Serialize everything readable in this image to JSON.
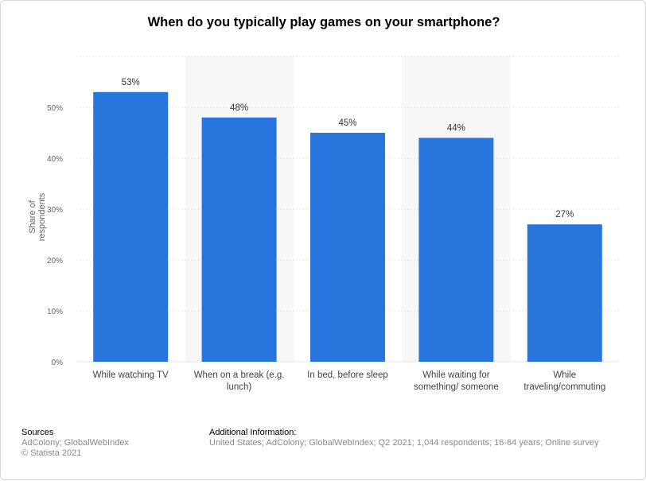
{
  "title": "When do you typically play games on your smartphone?",
  "chart_data": {
    "type": "bar",
    "categories": [
      [
        "While watching TV"
      ],
      [
        "When on a break (e.g.",
        "lunch)"
      ],
      [
        "In bed, before sleep"
      ],
      [
        "While waiting for",
        "something/ someone"
      ],
      [
        "While",
        "traveling/commuting"
      ]
    ],
    "values": [
      53,
      48,
      45,
      44,
      27
    ],
    "value_labels": [
      "53%",
      "48%",
      "45%",
      "44%",
      "27%"
    ],
    "ylabel": "Share of respondents",
    "ylim": [
      0,
      60
    ],
    "yticks": [
      0,
      10,
      20,
      30,
      40,
      50
    ],
    "ytick_labels": [
      "0%",
      "10%",
      "20%",
      "30%",
      "40%",
      "50%"
    ],
    "grid": true,
    "bar_color": "#2876dd"
  },
  "footer": {
    "sources_heading": "Sources",
    "sources_line1": "AdColony; GlobalWebIndex",
    "sources_line2": "© Statista 2021",
    "additional_heading": "Additional Information:",
    "additional_text": "United States; AdColony; GlobalWebIndex; Q2 2021; 1,044 respondents; 16-64 years; Online survey"
  }
}
